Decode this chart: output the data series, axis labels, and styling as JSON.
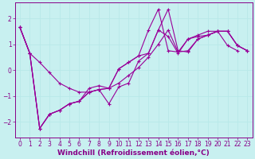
{
  "xlabel": "Windchill (Refroidissement éolien,°C)",
  "bg_color": "#c8f0f0",
  "line_color": "#990099",
  "grid_color": "#b8e8e8",
  "xlim": [
    -0.5,
    23.5
  ],
  "ylim": [
    -2.6,
    2.6
  ],
  "yticks": [
    -2,
    -1,
    0,
    1,
    2
  ],
  "xticks": [
    0,
    1,
    2,
    3,
    4,
    5,
    6,
    7,
    8,
    9,
    10,
    11,
    12,
    13,
    14,
    15,
    16,
    17,
    18,
    19,
    20,
    21,
    22,
    23
  ],
  "series": [
    {
      "x": [
        0,
        1,
        2,
        3,
        4,
        5,
        6,
        7,
        8,
        9,
        10,
        11,
        12,
        13,
        14,
        15,
        16,
        17,
        18,
        19,
        20,
        21,
        22,
        23
      ],
      "y": [
        1.65,
        0.65,
        0.3,
        -0.1,
        -0.5,
        -0.7,
        -0.85,
        -0.85,
        -0.75,
        -0.7,
        -0.5,
        -0.2,
        0.1,
        0.5,
        1.0,
        1.55,
        0.7,
        0.75,
        1.2,
        1.35,
        1.5,
        1.5,
        0.95,
        0.75
      ]
    },
    {
      "x": [
        0,
        1,
        2,
        3,
        4,
        5,
        6,
        7,
        8,
        9,
        10,
        11,
        12,
        13,
        14,
        15,
        16,
        17,
        18,
        19,
        20,
        21,
        22,
        23
      ],
      "y": [
        1.65,
        0.65,
        -2.25,
        -1.7,
        -1.55,
        -1.3,
        -1.2,
        -0.85,
        -0.75,
        -0.7,
        0.05,
        0.3,
        0.55,
        0.65,
        1.55,
        2.35,
        0.75,
        0.7,
        1.2,
        1.35,
        1.5,
        1.5,
        0.95,
        0.75
      ]
    },
    {
      "x": [
        0,
        1,
        2,
        3,
        4,
        5,
        6,
        7,
        8,
        9,
        10,
        11,
        12,
        13,
        14,
        15,
        16,
        17,
        18,
        19,
        20,
        21,
        22,
        23
      ],
      "y": [
        1.65,
        0.65,
        -2.25,
        -1.7,
        -1.55,
        -1.3,
        -1.2,
        -0.85,
        -0.75,
        -1.3,
        -0.65,
        -0.5,
        0.35,
        0.65,
        1.55,
        1.3,
        0.65,
        1.2,
        1.3,
        1.35,
        1.5,
        1.5,
        0.95,
        0.75
      ]
    },
    {
      "x": [
        0,
        1,
        2,
        3,
        4,
        5,
        6,
        7,
        8,
        9,
        10,
        11,
        12,
        13,
        14,
        15,
        16,
        17,
        18,
        19,
        20,
        21,
        22
      ],
      "y": [
        1.65,
        0.65,
        -2.25,
        -1.7,
        -1.55,
        -1.3,
        -1.2,
        -0.7,
        -0.6,
        -0.7,
        0.05,
        0.3,
        0.55,
        1.55,
        2.35,
        0.75,
        0.7,
        1.2,
        1.35,
        1.5,
        1.5,
        0.95,
        0.75
      ]
    }
  ],
  "xlabel_fontsize": 6.5,
  "tick_fontsize": 5.5
}
